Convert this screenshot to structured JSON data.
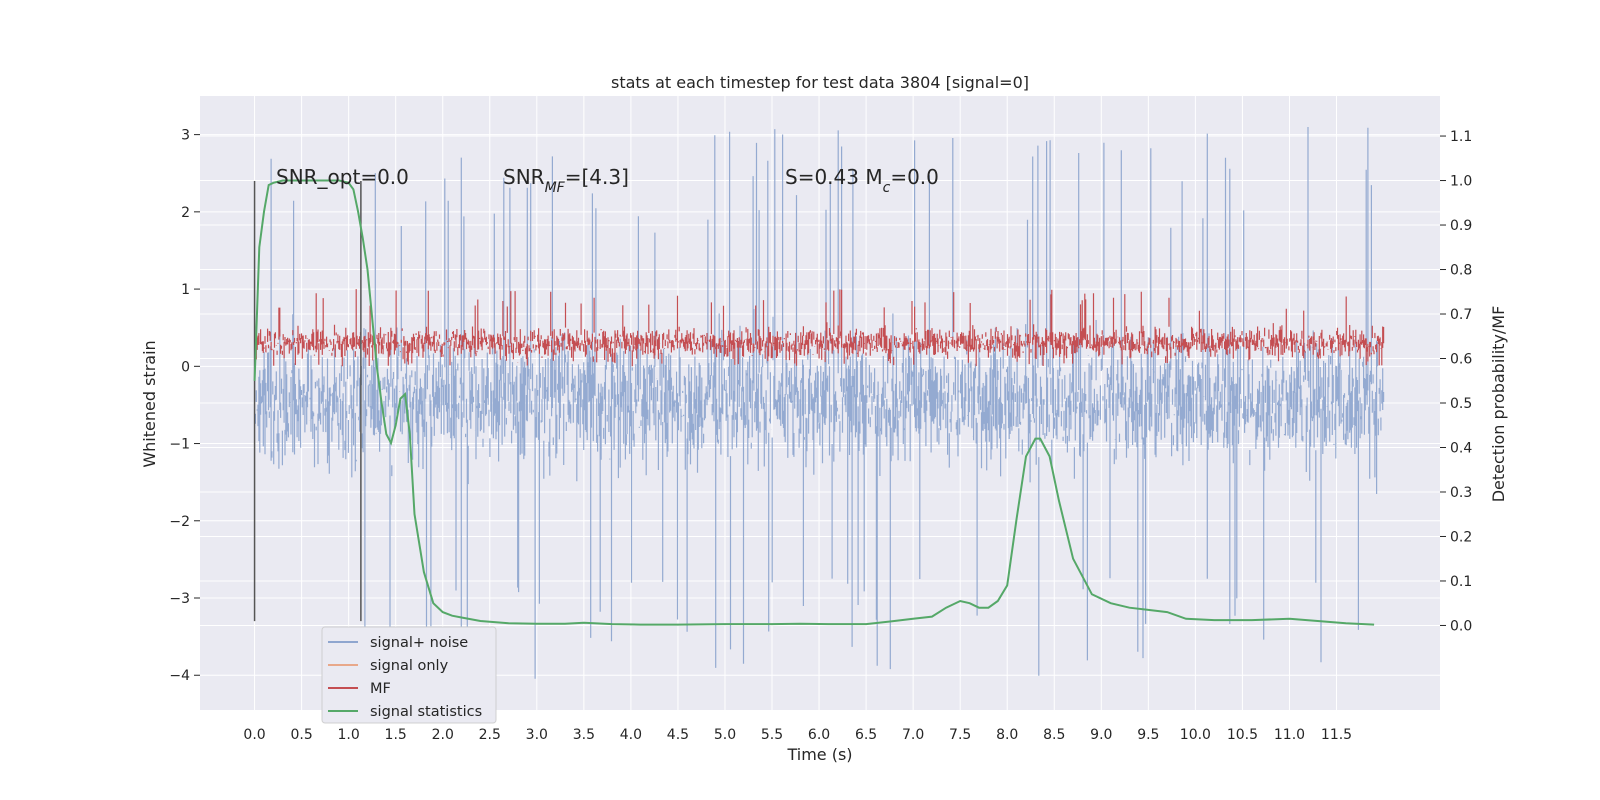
{
  "chart_data": {
    "type": "line",
    "title": "stats at each timestep for test data 3804 [signal=0]",
    "xlabel": "Time (s)",
    "ylabel_left": "Whitened strain",
    "ylabel_right": "Detection probability/MF",
    "xlim": [
      -0.58,
      12.6
    ],
    "ylim_left": [
      -4.45,
      3.5
    ],
    "ylim_right": [
      -0.19,
      1.19
    ],
    "x_ticks": [
      "0.0",
      "0.5",
      "1.0",
      "1.5",
      "2.0",
      "2.5",
      "3.0",
      "3.5",
      "4.0",
      "4.5",
      "5.0",
      "5.5",
      "6.0",
      "6.5",
      "7.0",
      "7.5",
      "8.0",
      "8.5",
      "9.0",
      "9.5",
      "10.0",
      "10.5",
      "11.0",
      "11.5"
    ],
    "y_ticks_left": [
      "3",
      "2",
      "1",
      "0",
      "−1",
      "−2",
      "−3",
      "−4"
    ],
    "y_ticks_right": [
      "1.1",
      "1.0",
      "0.9",
      "0.8",
      "0.7",
      "0.6",
      "0.5",
      "0.4",
      "0.3",
      "0.2",
      "0.1",
      "0.0"
    ],
    "grid": true,
    "legend_position": "lower-left",
    "annotations": [
      {
        "id": "snr_opt",
        "text": "SNR_opt=0.0"
      },
      {
        "id": "snr_mf",
        "text": "SNR_MF=[4.3]"
      },
      {
        "id": "stats",
        "text": "S=0.43   M_c=0.0"
      }
    ],
    "markers": [
      {
        "x": 0.0,
        "y_range": [
          -3.3,
          2.4
        ]
      },
      {
        "x": 1.13,
        "y_range": [
          -3.3,
          2.4
        ]
      }
    ],
    "series": [
      {
        "name": "signal+ noise",
        "color": "#8fa6cf",
        "axis": "left",
        "band_mean": -0.45,
        "band_sd": 0.55,
        "range": [
          -4.1,
          3.15
        ],
        "x_range": [
          0.0,
          12.0
        ]
      },
      {
        "name": "signal only",
        "color": "#e8a88a",
        "axis": "left",
        "values": []
      },
      {
        "name": "MF",
        "color": "#c44e52",
        "axis": "left",
        "band_mean": 0.3,
        "band_sd": 0.13,
        "range": [
          0.0,
          1.0
        ],
        "x_range": [
          0.0,
          12.0
        ]
      },
      {
        "name": "signal statistics",
        "color": "#55a868",
        "axis": "right",
        "x": [
          0.0,
          0.05,
          0.1,
          0.15,
          0.2,
          0.3,
          0.5,
          0.7,
          0.9,
          1.0,
          1.05,
          1.1,
          1.15,
          1.2,
          1.3,
          1.35,
          1.4,
          1.45,
          1.5,
          1.55,
          1.6,
          1.65,
          1.7,
          1.8,
          1.9,
          2.0,
          2.1,
          2.2,
          2.4,
          2.7,
          3.0,
          3.3,
          3.5,
          3.8,
          4.1,
          4.5,
          5.0,
          5.5,
          5.8,
          6.1,
          6.5,
          6.8,
          7.0,
          7.2,
          7.35,
          7.5,
          7.6,
          7.7,
          7.8,
          7.9,
          8.0,
          8.1,
          8.2,
          8.3,
          8.35,
          8.45,
          8.55,
          8.7,
          8.9,
          9.1,
          9.3,
          9.5,
          9.7,
          9.9,
          10.2,
          10.6,
          11.0,
          11.3,
          11.6,
          11.9
        ],
        "y": [
          0.55,
          0.85,
          0.93,
          0.99,
          0.995,
          1.0,
          1.0,
          1.0,
          1.0,
          0.995,
          0.98,
          0.93,
          0.87,
          0.8,
          0.58,
          0.5,
          0.43,
          0.41,
          0.45,
          0.51,
          0.52,
          0.43,
          0.25,
          0.12,
          0.05,
          0.03,
          0.022,
          0.018,
          0.01,
          0.005,
          0.004,
          0.004,
          0.006,
          0.003,
          0.002,
          0.002,
          0.003,
          0.003,
          0.004,
          0.003,
          0.003,
          0.01,
          0.015,
          0.02,
          0.04,
          0.055,
          0.05,
          0.04,
          0.04,
          0.055,
          0.09,
          0.24,
          0.38,
          0.42,
          0.42,
          0.38,
          0.28,
          0.15,
          0.07,
          0.05,
          0.04,
          0.035,
          0.03,
          0.015,
          0.012,
          0.012,
          0.015,
          0.01,
          0.005,
          0.002
        ]
      }
    ]
  }
}
